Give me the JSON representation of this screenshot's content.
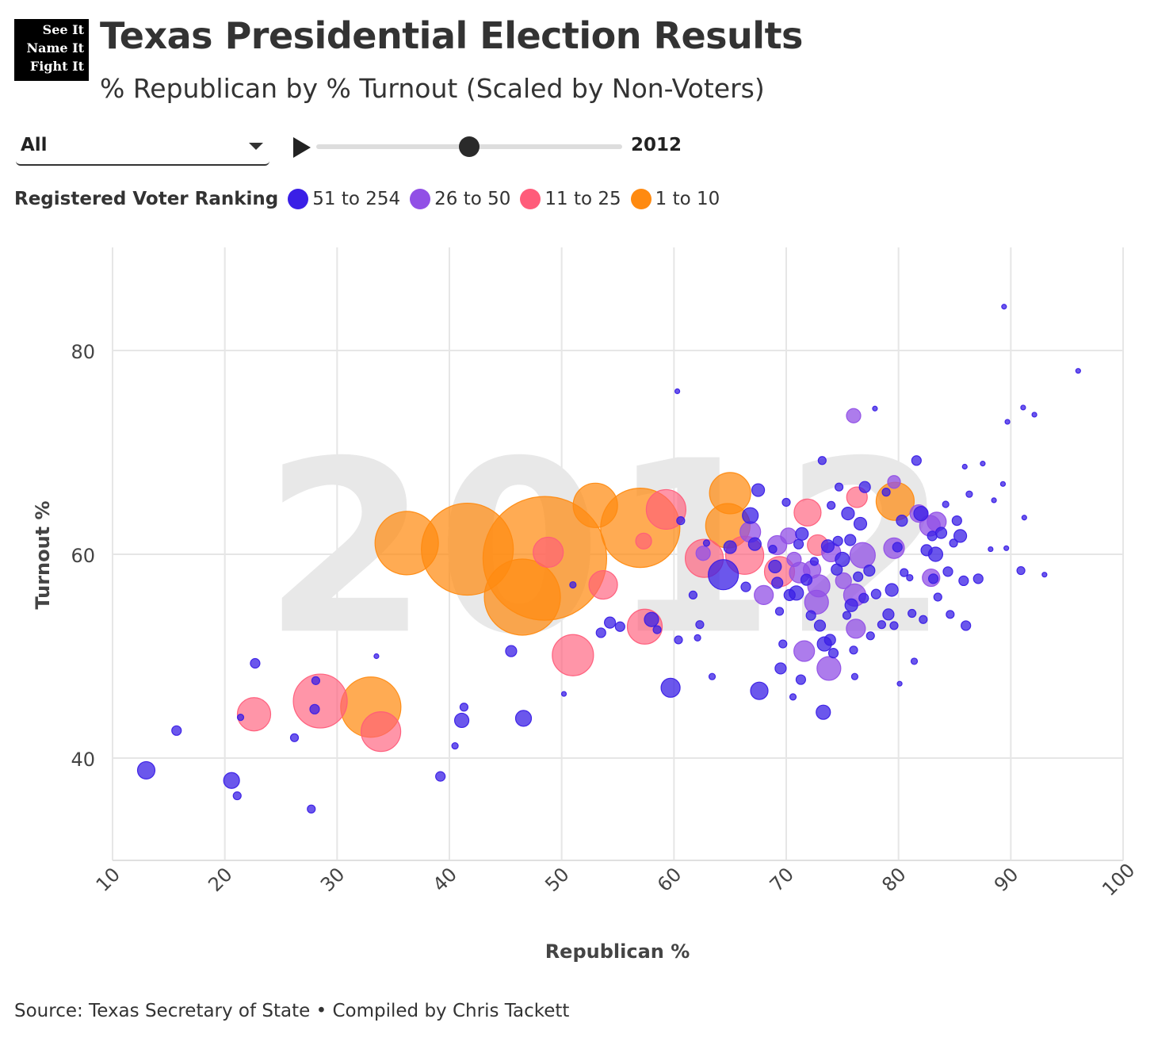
{
  "logo": {
    "lines": [
      "See It",
      "Name It",
      "Fight It"
    ]
  },
  "header": {
    "title": "Texas Presidential Election Results",
    "subtitle": "% Republican by % Turnout (Scaled by Non-Voters)"
  },
  "controls": {
    "filter_value": "All",
    "year_label": "2012",
    "slider_fraction": 0.5
  },
  "legend": {
    "title": "Registered Voter Ranking",
    "items": [
      {
        "label": "51 to 254",
        "color": "#3a1fe6"
      },
      {
        "label": "26 to 50",
        "color": "#9150e6"
      },
      {
        "label": "11 to 25",
        "color": "#ff5c7a"
      },
      {
        "label": "1 to 10",
        "color": "#ff8a10"
      }
    ]
  },
  "source": "Source: Texas Secretary of State • Compiled by Chris Tackett",
  "chart_data": {
    "type": "scatter",
    "title": "Texas Presidential Election Results",
    "xlabel": "Republican %",
    "ylabel": "Turnout %",
    "xlim": [
      10,
      100
    ],
    "ylim": [
      30,
      90
    ],
    "xticks": [
      10,
      20,
      30,
      40,
      50,
      60,
      70,
      80,
      90,
      100
    ],
    "yticks": [
      40,
      60,
      80
    ],
    "watermark": "2012",
    "grid": true,
    "size_meaning": "non-voters (relative)",
    "series": [
      {
        "name": "1 to 10",
        "color": "#ff8a10",
        "points": [
          {
            "x": 36.2,
            "y": 61.1,
            "r": 40
          },
          {
            "x": 41.6,
            "y": 60.5,
            "r": 58
          },
          {
            "x": 48.5,
            "y": 59.6,
            "r": 78
          },
          {
            "x": 46.5,
            "y": 55.8,
            "r": 48
          },
          {
            "x": 53.0,
            "y": 64.8,
            "r": 28
          },
          {
            "x": 57.0,
            "y": 62.6,
            "r": 50
          },
          {
            "x": 65.0,
            "y": 66.0,
            "r": 26
          },
          {
            "x": 64.8,
            "y": 62.8,
            "r": 28
          },
          {
            "x": 33.0,
            "y": 45.0,
            "r": 38
          },
          {
            "x": 79.7,
            "y": 65.2,
            "r": 24
          }
        ]
      },
      {
        "name": "11 to 25",
        "color": "#ff5c7a",
        "points": [
          {
            "x": 28.5,
            "y": 45.6,
            "r": 34
          },
          {
            "x": 33.9,
            "y": 42.6,
            "r": 25
          },
          {
            "x": 22.6,
            "y": 44.3,
            "r": 21
          },
          {
            "x": 51.0,
            "y": 50.1,
            "r": 26
          },
          {
            "x": 57.4,
            "y": 52.9,
            "r": 22
          },
          {
            "x": 59.3,
            "y": 64.4,
            "r": 25
          },
          {
            "x": 53.7,
            "y": 57.0,
            "r": 18
          },
          {
            "x": 48.8,
            "y": 60.2,
            "r": 19
          },
          {
            "x": 62.7,
            "y": 59.6,
            "r": 24
          },
          {
            "x": 66.3,
            "y": 59.9,
            "r": 24
          },
          {
            "x": 69.4,
            "y": 58.3,
            "r": 19
          },
          {
            "x": 71.9,
            "y": 64.1,
            "r": 17
          },
          {
            "x": 72.8,
            "y": 60.9,
            "r": 13
          },
          {
            "x": 76.3,
            "y": 65.6,
            "r": 13
          },
          {
            "x": 57.3,
            "y": 61.3,
            "r": 10
          }
        ]
      },
      {
        "name": "26 to 50",
        "color": "#9150e6",
        "points": [
          {
            "x": 76.0,
            "y": 73.6,
            "r": 9
          },
          {
            "x": 66.8,
            "y": 62.2,
            "r": 13
          },
          {
            "x": 69.2,
            "y": 60.9,
            "r": 12
          },
          {
            "x": 70.2,
            "y": 61.8,
            "r": 10
          },
          {
            "x": 68.0,
            "y": 56.0,
            "r": 12
          },
          {
            "x": 71.2,
            "y": 58.2,
            "r": 13
          },
          {
            "x": 72.3,
            "y": 58.5,
            "r": 11
          },
          {
            "x": 72.9,
            "y": 56.9,
            "r": 14
          },
          {
            "x": 72.7,
            "y": 55.3,
            "r": 15
          },
          {
            "x": 74.0,
            "y": 60.2,
            "r": 12
          },
          {
            "x": 75.1,
            "y": 57.4,
            "r": 10
          },
          {
            "x": 76.8,
            "y": 59.9,
            "r": 16
          },
          {
            "x": 76.1,
            "y": 56.0,
            "r": 14
          },
          {
            "x": 76.2,
            "y": 52.7,
            "r": 12
          },
          {
            "x": 71.6,
            "y": 50.5,
            "r": 13
          },
          {
            "x": 73.8,
            "y": 48.8,
            "r": 15
          },
          {
            "x": 79.6,
            "y": 60.6,
            "r": 13
          },
          {
            "x": 81.8,
            "y": 64.0,
            "r": 11
          },
          {
            "x": 82.8,
            "y": 62.8,
            "r": 13
          },
          {
            "x": 83.4,
            "y": 63.2,
            "r": 12
          },
          {
            "x": 82.9,
            "y": 57.7,
            "r": 11
          },
          {
            "x": 79.6,
            "y": 67.1,
            "r": 8
          },
          {
            "x": 62.6,
            "y": 60.1,
            "r": 9
          },
          {
            "x": 70.7,
            "y": 59.5,
            "r": 9
          }
        ]
      },
      {
        "name": "51 to 254",
        "color": "#3a1fe6",
        "points": [
          {
            "x": 13.0,
            "y": 38.8,
            "r": 11
          },
          {
            "x": 15.7,
            "y": 42.7,
            "r": 6
          },
          {
            "x": 20.6,
            "y": 37.8,
            "r": 10
          },
          {
            "x": 21.1,
            "y": 36.3,
            "r": 5
          },
          {
            "x": 21.4,
            "y": 44.0,
            "r": 4
          },
          {
            "x": 22.7,
            "y": 49.3,
            "r": 6
          },
          {
            "x": 26.2,
            "y": 42.0,
            "r": 5
          },
          {
            "x": 27.7,
            "y": 35.0,
            "r": 5
          },
          {
            "x": 28.0,
            "y": 44.8,
            "r": 6
          },
          {
            "x": 28.1,
            "y": 47.6,
            "r": 5
          },
          {
            "x": 33.5,
            "y": 50.0,
            "r": 3
          },
          {
            "x": 39.2,
            "y": 38.2,
            "r": 6
          },
          {
            "x": 40.5,
            "y": 41.2,
            "r": 4
          },
          {
            "x": 41.1,
            "y": 43.7,
            "r": 9
          },
          {
            "x": 41.3,
            "y": 45.0,
            "r": 5
          },
          {
            "x": 45.5,
            "y": 50.5,
            "r": 7
          },
          {
            "x": 46.6,
            "y": 43.9,
            "r": 10
          },
          {
            "x": 50.2,
            "y": 46.3,
            "r": 3
          },
          {
            "x": 51.0,
            "y": 57.0,
            "r": 4
          },
          {
            "x": 53.5,
            "y": 52.3,
            "r": 6
          },
          {
            "x": 54.3,
            "y": 53.3,
            "r": 7
          },
          {
            "x": 55.2,
            "y": 52.9,
            "r": 6
          },
          {
            "x": 58.0,
            "y": 53.6,
            "r": 9
          },
          {
            "x": 58.5,
            "y": 52.6,
            "r": 5
          },
          {
            "x": 59.7,
            "y": 46.9,
            "r": 12
          },
          {
            "x": 60.4,
            "y": 51.6,
            "r": 5
          },
          {
            "x": 60.3,
            "y": 76.0,
            "r": 3
          },
          {
            "x": 60.6,
            "y": 63.3,
            "r": 5
          },
          {
            "x": 61.7,
            "y": 56.0,
            "r": 5
          },
          {
            "x": 62.1,
            "y": 51.8,
            "r": 4
          },
          {
            "x": 62.3,
            "y": 53.1,
            "r": 5
          },
          {
            "x": 62.9,
            "y": 61.1,
            "r": 4
          },
          {
            "x": 63.4,
            "y": 48.0,
            "r": 4
          },
          {
            "x": 64.4,
            "y": 58.0,
            "r": 19
          },
          {
            "x": 65.0,
            "y": 60.7,
            "r": 8
          },
          {
            "x": 66.4,
            "y": 56.8,
            "r": 6
          },
          {
            "x": 66.8,
            "y": 63.8,
            "r": 10
          },
          {
            "x": 67.2,
            "y": 61.0,
            "r": 8
          },
          {
            "x": 67.6,
            "y": 46.6,
            "r": 11
          },
          {
            "x": 67.5,
            "y": 66.3,
            "r": 8
          },
          {
            "x": 68.8,
            "y": 60.5,
            "r": 5
          },
          {
            "x": 69.0,
            "y": 58.8,
            "r": 8
          },
          {
            "x": 69.2,
            "y": 57.2,
            "r": 7
          },
          {
            "x": 69.4,
            "y": 54.4,
            "r": 5
          },
          {
            "x": 69.5,
            "y": 48.8,
            "r": 7
          },
          {
            "x": 69.7,
            "y": 51.2,
            "r": 5
          },
          {
            "x": 70.0,
            "y": 65.1,
            "r": 5
          },
          {
            "x": 70.3,
            "y": 56.0,
            "r": 7
          },
          {
            "x": 70.6,
            "y": 46.0,
            "r": 4
          },
          {
            "x": 70.9,
            "y": 56.2,
            "r": 9
          },
          {
            "x": 71.1,
            "y": 61.0,
            "r": 6
          },
          {
            "x": 71.4,
            "y": 62.0,
            "r": 8
          },
          {
            "x": 71.3,
            "y": 47.7,
            "r": 6
          },
          {
            "x": 71.8,
            "y": 57.5,
            "r": 7
          },
          {
            "x": 72.2,
            "y": 54.0,
            "r": 6
          },
          {
            "x": 72.5,
            "y": 59.3,
            "r": 5
          },
          {
            "x": 73.0,
            "y": 53.0,
            "r": 7
          },
          {
            "x": 73.2,
            "y": 69.2,
            "r": 5
          },
          {
            "x": 73.3,
            "y": 44.5,
            "r": 9
          },
          {
            "x": 73.4,
            "y": 51.2,
            "r": 9
          },
          {
            "x": 73.7,
            "y": 60.8,
            "r": 8
          },
          {
            "x": 73.9,
            "y": 51.6,
            "r": 7
          },
          {
            "x": 74.0,
            "y": 64.8,
            "r": 5
          },
          {
            "x": 74.2,
            "y": 50.3,
            "r": 6
          },
          {
            "x": 74.5,
            "y": 58.5,
            "r": 7
          },
          {
            "x": 74.6,
            "y": 61.3,
            "r": 6
          },
          {
            "x": 74.7,
            "y": 66.6,
            "r": 5
          },
          {
            "x": 75.0,
            "y": 59.5,
            "r": 9
          },
          {
            "x": 75.4,
            "y": 54.0,
            "r": 5
          },
          {
            "x": 75.5,
            "y": 64.0,
            "r": 8
          },
          {
            "x": 75.7,
            "y": 61.4,
            "r": 7
          },
          {
            "x": 75.8,
            "y": 55.0,
            "r": 8
          },
          {
            "x": 76.0,
            "y": 50.6,
            "r": 5
          },
          {
            "x": 76.1,
            "y": 48.0,
            "r": 4
          },
          {
            "x": 76.4,
            "y": 57.8,
            "r": 6
          },
          {
            "x": 76.6,
            "y": 63.0,
            "r": 8
          },
          {
            "x": 76.9,
            "y": 55.7,
            "r": 6
          },
          {
            "x": 77.0,
            "y": 66.6,
            "r": 7
          },
          {
            "x": 77.4,
            "y": 58.4,
            "r": 7
          },
          {
            "x": 77.5,
            "y": 52.0,
            "r": 5
          },
          {
            "x": 77.9,
            "y": 74.3,
            "r": 3
          },
          {
            "x": 78.0,
            "y": 56.1,
            "r": 6
          },
          {
            "x": 78.5,
            "y": 53.1,
            "r": 5
          },
          {
            "x": 78.9,
            "y": 66.1,
            "r": 5
          },
          {
            "x": 79.1,
            "y": 54.1,
            "r": 7
          },
          {
            "x": 79.4,
            "y": 56.5,
            "r": 8
          },
          {
            "x": 79.6,
            "y": 53.0,
            "r": 5
          },
          {
            "x": 79.9,
            "y": 60.7,
            "r": 6
          },
          {
            "x": 80.1,
            "y": 47.3,
            "r": 3
          },
          {
            "x": 80.3,
            "y": 63.3,
            "r": 7
          },
          {
            "x": 80.5,
            "y": 58.2,
            "r": 5
          },
          {
            "x": 81.0,
            "y": 57.7,
            "r": 4
          },
          {
            "x": 81.2,
            "y": 54.2,
            "r": 5
          },
          {
            "x": 81.4,
            "y": 49.5,
            "r": 4
          },
          {
            "x": 81.6,
            "y": 69.2,
            "r": 6
          },
          {
            "x": 82.0,
            "y": 64.0,
            "r": 9
          },
          {
            "x": 82.2,
            "y": 53.6,
            "r": 5
          },
          {
            "x": 82.5,
            "y": 60.4,
            "r": 7
          },
          {
            "x": 83.0,
            "y": 61.8,
            "r": 6
          },
          {
            "x": 83.1,
            "y": 57.6,
            "r": 6
          },
          {
            "x": 83.3,
            "y": 60.0,
            "r": 9
          },
          {
            "x": 83.5,
            "y": 55.8,
            "r": 5
          },
          {
            "x": 83.8,
            "y": 62.1,
            "r": 7
          },
          {
            "x": 84.2,
            "y": 64.9,
            "r": 4
          },
          {
            "x": 84.4,
            "y": 58.3,
            "r": 6
          },
          {
            "x": 84.6,
            "y": 54.1,
            "r": 5
          },
          {
            "x": 84.9,
            "y": 61.1,
            "r": 5
          },
          {
            "x": 85.2,
            "y": 63.3,
            "r": 6
          },
          {
            "x": 85.5,
            "y": 61.8,
            "r": 8
          },
          {
            "x": 85.8,
            "y": 57.4,
            "r": 6
          },
          {
            "x": 85.9,
            "y": 68.6,
            "r": 3
          },
          {
            "x": 86.3,
            "y": 65.9,
            "r": 4
          },
          {
            "x": 86.0,
            "y": 53.0,
            "r": 6
          },
          {
            "x": 87.1,
            "y": 57.6,
            "r": 6
          },
          {
            "x": 87.5,
            "y": 68.9,
            "r": 3
          },
          {
            "x": 88.2,
            "y": 60.5,
            "r": 3
          },
          {
            "x": 88.5,
            "y": 65.3,
            "r": 3
          },
          {
            "x": 89.3,
            "y": 66.9,
            "r": 3
          },
          {
            "x": 89.4,
            "y": 84.3,
            "r": 3
          },
          {
            "x": 89.6,
            "y": 60.6,
            "r": 3
          },
          {
            "x": 89.7,
            "y": 73.0,
            "r": 3
          },
          {
            "x": 90.9,
            "y": 58.4,
            "r": 5
          },
          {
            "x": 91.1,
            "y": 74.4,
            "r": 3
          },
          {
            "x": 91.2,
            "y": 63.6,
            "r": 3
          },
          {
            "x": 92.1,
            "y": 73.7,
            "r": 3
          },
          {
            "x": 93.0,
            "y": 58.0,
            "r": 3
          },
          {
            "x": 96.0,
            "y": 78.0,
            "r": 3
          }
        ]
      }
    ]
  }
}
